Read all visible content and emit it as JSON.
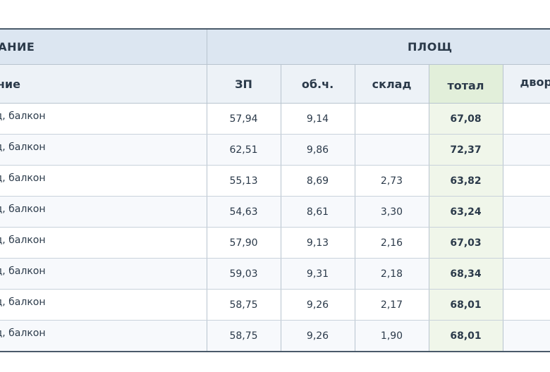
{
  "table": {
    "group_headers": {
      "description": "САНИЕ",
      "area": "ПЛОЩ"
    },
    "columns": {
      "description": "ание",
      "zp": "ЗП",
      "ob": "об.ч.",
      "sklad": "склад",
      "total": "тотал",
      "dvor": "двор"
    },
    "rows": [
      {
        "desc": "ад, балкон",
        "zp": "57,94",
        "ob": "9,14",
        "sklad": "",
        "total": "67,08",
        "dvor": ""
      },
      {
        "desc": "ад, балкон",
        "zp": "62,51",
        "ob": "9,86",
        "sklad": "",
        "total": "72,37",
        "dvor": ""
      },
      {
        "desc": "ад, балкон",
        "zp": "55,13",
        "ob": "8,69",
        "sklad": "2,73",
        "total": "63,82",
        "dvor": ""
      },
      {
        "desc": "ад, балкон",
        "zp": "54,63",
        "ob": "8,61",
        "sklad": "3,30",
        "total": "63,24",
        "dvor": ""
      },
      {
        "desc": "ад, балкон",
        "zp": "57,90",
        "ob": "9,13",
        "sklad": "2,16",
        "total": "67,03",
        "dvor": ""
      },
      {
        "desc": "ад, балкон",
        "zp": "59,03",
        "ob": "9,31",
        "sklad": "2,18",
        "total": "68,34",
        "dvor": ""
      },
      {
        "desc": "ад, балкон",
        "zp": "58,75",
        "ob": "9,26",
        "sklad": "2,17",
        "total": "68,01",
        "dvor": ""
      },
      {
        "desc": "ад, балкон",
        "zp": "58,75",
        "ob": "9,26",
        "sklad": "1,90",
        "total": "68,01",
        "dvor": ""
      }
    ]
  },
  "colors": {
    "group_header_bg": "#dce6f1",
    "column_header_bg": "#edf2f7",
    "total_header_bg": "#e2efda",
    "total_cell_bg": "#f0f6ea",
    "text": "#2b3a4a"
  }
}
